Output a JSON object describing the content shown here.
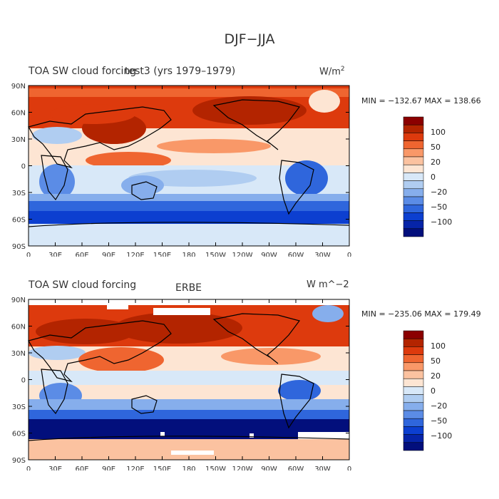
{
  "figure": {
    "title": "DJF−JJA"
  },
  "panels": [
    {
      "left_title": "TOA SW cloud forcing",
      "center_title": "test3 (yrs 1979–1979)",
      "units": "W/m",
      "units_sup": "2",
      "stats": "MIN = −132.67  MAX = 138.66",
      "lat_labels": [
        "90N",
        "60N",
        "30N",
        "0",
        "30S",
        "60S",
        "90S"
      ],
      "lon_labels": [
        "0",
        "30E",
        "60E",
        "90E",
        "120E",
        "150E",
        "180",
        "150W",
        "120W",
        "90W",
        "60W",
        "30W",
        "0"
      ],
      "colorbar": {
        "labels": [
          "100",
          "50",
          "20",
          "0",
          "−20",
          "−50",
          "−100"
        ],
        "colors": [
          "#8b0000",
          "#b32400",
          "#dd3a0d",
          "#ef6530",
          "#f99868",
          "#fbc2a0",
          "#fde5d3",
          "#d8e8f8",
          "#b0cdf1",
          "#86aeec",
          "#5b8ce6",
          "#2f66dc",
          "#0c3fd0",
          "#0624a8",
          "#020f7c"
        ]
      }
    },
    {
      "left_title": "TOA SW cloud forcing",
      "center_title": "ERBE",
      "units": "W m^−2",
      "stats": "MIN = −235.06  MAX = 179.49",
      "lat_labels": [
        "90N",
        "60N",
        "30N",
        "0",
        "30S",
        "60S",
        "90S"
      ],
      "lon_labels": [
        "0",
        "30E",
        "60E",
        "90E",
        "120E",
        "150E",
        "180",
        "150W",
        "120W",
        "90W",
        "60W",
        "30W",
        "0"
      ],
      "colorbar": {
        "labels": [
          "100",
          "50",
          "20",
          "0",
          "−20",
          "−50",
          "−100"
        ],
        "colors": [
          "#8b0000",
          "#b32400",
          "#dd3a0d",
          "#ef6530",
          "#f99868",
          "#fbc2a0",
          "#fde5d3",
          "#d8e8f8",
          "#b0cdf1",
          "#86aeec",
          "#5b8ce6",
          "#2f66dc",
          "#0c3fd0",
          "#0624a8",
          "#020f7c"
        ]
      }
    }
  ]
}
